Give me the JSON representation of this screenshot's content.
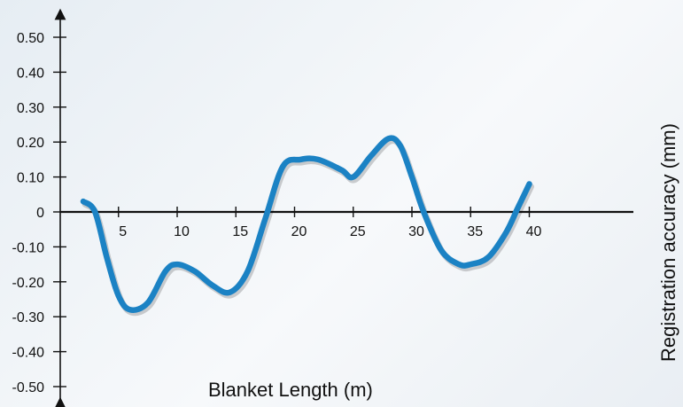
{
  "chart_data": {
    "type": "line",
    "xlabel": "Blanket Length (m)",
    "ylabel": "Registration accuracy (mm)",
    "xlim": [
      0,
      45
    ],
    "ylim": [
      -0.55,
      0.55
    ],
    "x_ticks": [
      5,
      10,
      15,
      20,
      25,
      30,
      35,
      40
    ],
    "y_ticks": [
      0.5,
      0.4,
      0.3,
      0.2,
      0.1,
      0,
      -0.1,
      -0.2,
      -0.3,
      -0.4,
      -0.5
    ],
    "y_tick_labels": [
      "0.50",
      "0.40",
      "0.30",
      "0.20",
      "0.10",
      "0",
      "-0.10",
      "-0.20",
      "-0.30",
      "-0.40",
      "-0.50"
    ],
    "grid": false,
    "series": [
      {
        "color": "#1b82c4",
        "points": [
          [
            2,
            0.03
          ],
          [
            3,
            0.0
          ],
          [
            4,
            -0.13
          ],
          [
            5,
            -0.24
          ],
          [
            6,
            -0.28
          ],
          [
            7.5,
            -0.26
          ],
          [
            9,
            -0.17
          ],
          [
            10,
            -0.15
          ],
          [
            11.5,
            -0.17
          ],
          [
            13,
            -0.21
          ],
          [
            14.5,
            -0.23
          ],
          [
            16,
            -0.17
          ],
          [
            17.5,
            -0.02
          ],
          [
            19,
            0.13
          ],
          [
            20.5,
            0.15
          ],
          [
            22,
            0.15
          ],
          [
            24,
            0.12
          ],
          [
            25,
            0.1
          ],
          [
            26.5,
            0.16
          ],
          [
            28,
            0.21
          ],
          [
            29,
            0.19
          ],
          [
            30,
            0.1
          ],
          [
            31,
            0.0
          ],
          [
            32.5,
            -0.11
          ],
          [
            34,
            -0.15
          ],
          [
            35,
            -0.15
          ],
          [
            36.5,
            -0.13
          ],
          [
            38,
            -0.06
          ],
          [
            39,
            0.01
          ],
          [
            40,
            0.08
          ]
        ]
      }
    ]
  }
}
